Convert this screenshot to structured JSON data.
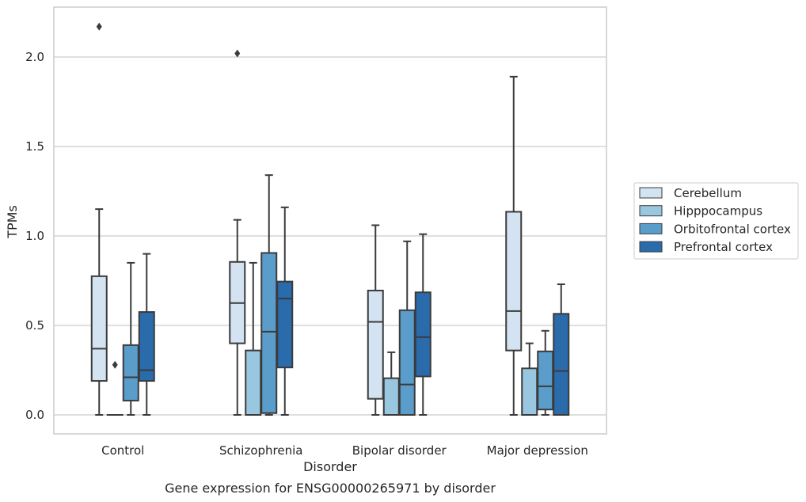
{
  "chart_data": {
    "type": "box",
    "title": "",
    "caption": "Gene expression for ENSG00000265971 by disorder",
    "xlabel": "Disorder",
    "ylabel": "TPMs",
    "ylim": [
      -0.1,
      2.3
    ],
    "yticks": [
      "0.0",
      "0.5",
      "1.0",
      "1.5",
      "2.0"
    ],
    "ytick_values": [
      0.0,
      0.5,
      1.0,
      1.5,
      2.0
    ],
    "grid": "horizontal",
    "legend_position": "right",
    "categories": [
      "Control",
      "Schizophrenia",
      "Bipolar disorder",
      "Major depression"
    ],
    "series": [
      {
        "name": "Cerebellum",
        "color": "#d3e3f1",
        "boxes": [
          {
            "whislo": 0.0,
            "q1": 0.19,
            "med": 0.37,
            "q3": 0.775,
            "whishi": 1.15,
            "fliers": [
              2.17
            ]
          },
          {
            "whislo": 0.0,
            "q1": 0.4,
            "med": 0.625,
            "q3": 0.855,
            "whishi": 1.09,
            "fliers": [
              2.02
            ]
          },
          {
            "whislo": 0.0,
            "q1": 0.09,
            "med": 0.52,
            "q3": 0.695,
            "whishi": 1.06,
            "fliers": []
          },
          {
            "whislo": 0.0,
            "q1": 0.36,
            "med": 0.58,
            "q3": 1.135,
            "whishi": 1.89,
            "fliers": []
          }
        ]
      },
      {
        "name": "Hipppocampus",
        "color": "#9ac7e0",
        "boxes": [
          {
            "whislo": 0.0,
            "q1": 0.0,
            "med": 0.0,
            "q3": 0.0,
            "whishi": 0.0,
            "fliers": [
              0.28
            ]
          },
          {
            "whislo": 0.0,
            "q1": 0.0,
            "med": 0.0,
            "q3": 0.36,
            "whishi": 0.85,
            "fliers": []
          },
          {
            "whislo": 0.0,
            "q1": 0.0,
            "med": 0.0,
            "q3": 0.205,
            "whishi": 0.35,
            "fliers": []
          },
          {
            "whislo": 0.0,
            "q1": 0.0,
            "med": 0.0,
            "q3": 0.26,
            "whishi": 0.4,
            "fliers": []
          }
        ]
      },
      {
        "name": "Orbitofrontal cortex",
        "color": "#5a9dcb",
        "boxes": [
          {
            "whislo": 0.0,
            "q1": 0.08,
            "med": 0.21,
            "q3": 0.39,
            "whishi": 0.85,
            "fliers": []
          },
          {
            "whislo": 0.0,
            "q1": 0.01,
            "med": 0.465,
            "q3": 0.905,
            "whishi": 1.34,
            "fliers": []
          },
          {
            "whislo": 0.0,
            "q1": 0.0,
            "med": 0.17,
            "q3": 0.585,
            "whishi": 0.97,
            "fliers": []
          },
          {
            "whislo": 0.0,
            "q1": 0.03,
            "med": 0.16,
            "q3": 0.355,
            "whishi": 0.47,
            "fliers": []
          }
        ]
      },
      {
        "name": "Prefrontal cortex",
        "color": "#2a6bac",
        "boxes": [
          {
            "whislo": 0.0,
            "q1": 0.19,
            "med": 0.25,
            "q3": 0.575,
            "whishi": 0.9,
            "fliers": []
          },
          {
            "whislo": 0.0,
            "q1": 0.265,
            "med": 0.65,
            "q3": 0.745,
            "whishi": 1.16,
            "fliers": []
          },
          {
            "whislo": 0.0,
            "q1": 0.215,
            "med": 0.435,
            "q3": 0.685,
            "whishi": 1.01,
            "fliers": []
          },
          {
            "whislo": 0.0,
            "q1": 0.0,
            "med": 0.245,
            "q3": 0.565,
            "whishi": 0.73,
            "fliers": []
          }
        ]
      }
    ]
  }
}
